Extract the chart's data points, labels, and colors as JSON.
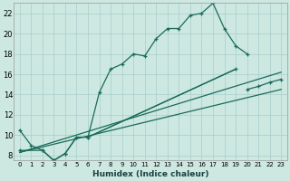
{
  "xlabel": "Humidex (Indice chaleur)",
  "bg_color": "#cce8e0",
  "grid_color": "#aacccc",
  "line_color": "#1a6b5a",
  "xlim": [
    -0.5,
    23.5
  ],
  "ylim": [
    7.5,
    23.0
  ],
  "yticks": [
    8,
    10,
    12,
    14,
    16,
    18,
    20,
    22
  ],
  "xticks": [
    0,
    1,
    2,
    3,
    4,
    5,
    6,
    7,
    8,
    9,
    10,
    11,
    12,
    13,
    14,
    15,
    16,
    17,
    18,
    19,
    20,
    21,
    22,
    23
  ],
  "curve1_x": [
    0,
    1,
    2,
    3,
    4,
    5,
    6,
    7,
    8,
    9,
    10,
    11,
    12,
    13,
    14,
    15,
    16,
    17,
    18,
    19,
    20
  ],
  "curve1_y": [
    10.5,
    9.0,
    8.5,
    7.5,
    8.2,
    9.8,
    9.8,
    14.2,
    16.5,
    17.0,
    18.0,
    17.8,
    19.5,
    20.5,
    20.5,
    21.8,
    22.0,
    23.0,
    20.5,
    18.8,
    18.0
  ],
  "curve2_x": [
    0,
    2,
    3,
    4,
    5,
    6,
    19,
    20,
    21,
    22,
    23
  ],
  "curve2_y": [
    8.5,
    8.5,
    7.5,
    8.2,
    9.8,
    9.8,
    16.5,
    14.5,
    14.8,
    15.2,
    15.5
  ],
  "line1_x": [
    0,
    23
  ],
  "line1_y": [
    8.3,
    16.2
  ],
  "line2_x": [
    0,
    23
  ],
  "line2_y": [
    8.3,
    14.5
  ]
}
